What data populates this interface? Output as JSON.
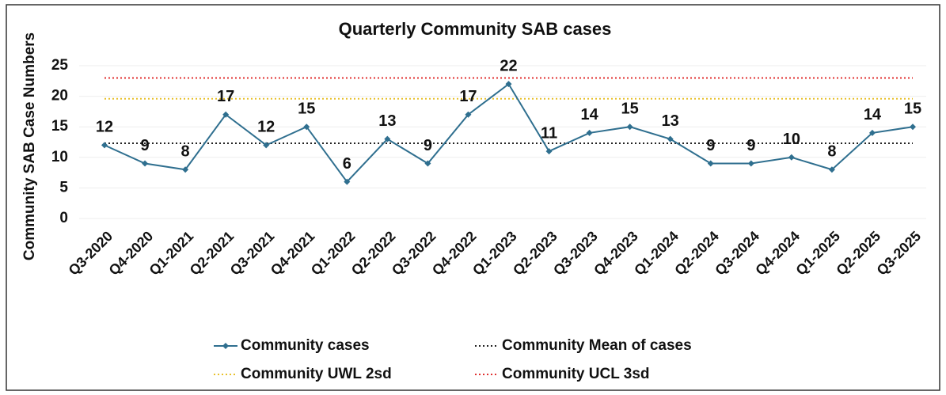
{
  "chart_data": {
    "type": "line",
    "title": "Quarterly Community SAB cases",
    "y_label": "Community SAB Case Numbers",
    "categories": [
      "Q3-2020",
      "Q4-2020",
      "Q1-2021",
      "Q2-2021",
      "Q3-2021",
      "Q4-2021",
      "Q1-2022",
      "Q2-2022",
      "Q3-2022",
      "Q4-2022",
      "Q1-2023",
      "Q2-2023",
      "Q3-2023",
      "Q4-2023",
      "Q1-2024",
      "Q2-2024",
      "Q3-2024",
      "Q4-2024",
      "Q1-2025",
      "Q2-2025",
      "Q3-2025"
    ],
    "series": [
      {
        "name": "Community cases",
        "color": "#2f6f8f",
        "style": "solid",
        "markers": true,
        "data_labels": true,
        "values": [
          12,
          9,
          8,
          17,
          12,
          15,
          6,
          13,
          9,
          17,
          22,
          11,
          14,
          15,
          13,
          9,
          9,
          10,
          8,
          14,
          15
        ]
      },
      {
        "name": "Community Mean of cases",
        "color": "#222222",
        "style": "dotted",
        "values": [
          12.3,
          12.3,
          12.3,
          12.3,
          12.3,
          12.3,
          12.3,
          12.3,
          12.3,
          12.3,
          12.3,
          12.3,
          12.3,
          12.3,
          12.3,
          12.3,
          12.3,
          12.3,
          12.3,
          12.3,
          12.3
        ]
      },
      {
        "name": "Community UWL 2sd",
        "color": "#e8c02a",
        "style": "dotted",
        "values": [
          19.6,
          19.6,
          19.6,
          19.6,
          19.6,
          19.6,
          19.6,
          19.6,
          19.6,
          19.6,
          19.6,
          19.6,
          19.6,
          19.6,
          19.6,
          19.6,
          19.6,
          19.6,
          19.6,
          19.6,
          19.6
        ]
      },
      {
        "name": "Community UCL 3sd",
        "color": "#e03030",
        "style": "dotted",
        "values": [
          23,
          23,
          23,
          23,
          23,
          23,
          23,
          23,
          23,
          23,
          23,
          23,
          23,
          23,
          23,
          23,
          23,
          23,
          23,
          23,
          23
        ]
      }
    ],
    "ylim": [
      0,
      25
    ],
    "yticks": [
      0,
      5,
      10,
      15,
      20,
      25
    ],
    "grid": true,
    "legend": "bottom"
  }
}
